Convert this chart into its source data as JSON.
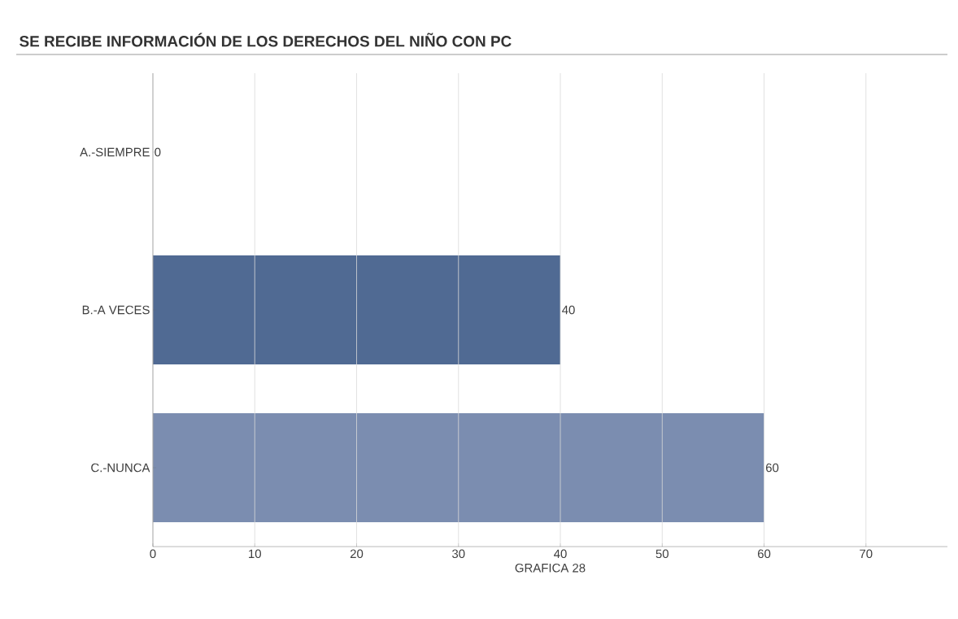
{
  "chart_data": {
    "type": "bar",
    "orientation": "horizontal",
    "title": "SE RECIBE INFORMACIÓN DE LOS DERECHOS DEL NIÑO CON PC",
    "xlabel": "GRAFICA 28",
    "categories": [
      "A.-SIEMPRE",
      "B.-A VECES",
      "C.-NUNCA"
    ],
    "values": [
      0,
      40,
      60
    ],
    "colors": [
      "#506a93",
      "#506a93",
      "#7b8db0"
    ],
    "xlim": [
      0,
      78
    ],
    "xticks": [
      0,
      10,
      20,
      30,
      40,
      50,
      60,
      70
    ],
    "grid": "x",
    "data_labels": true
  }
}
